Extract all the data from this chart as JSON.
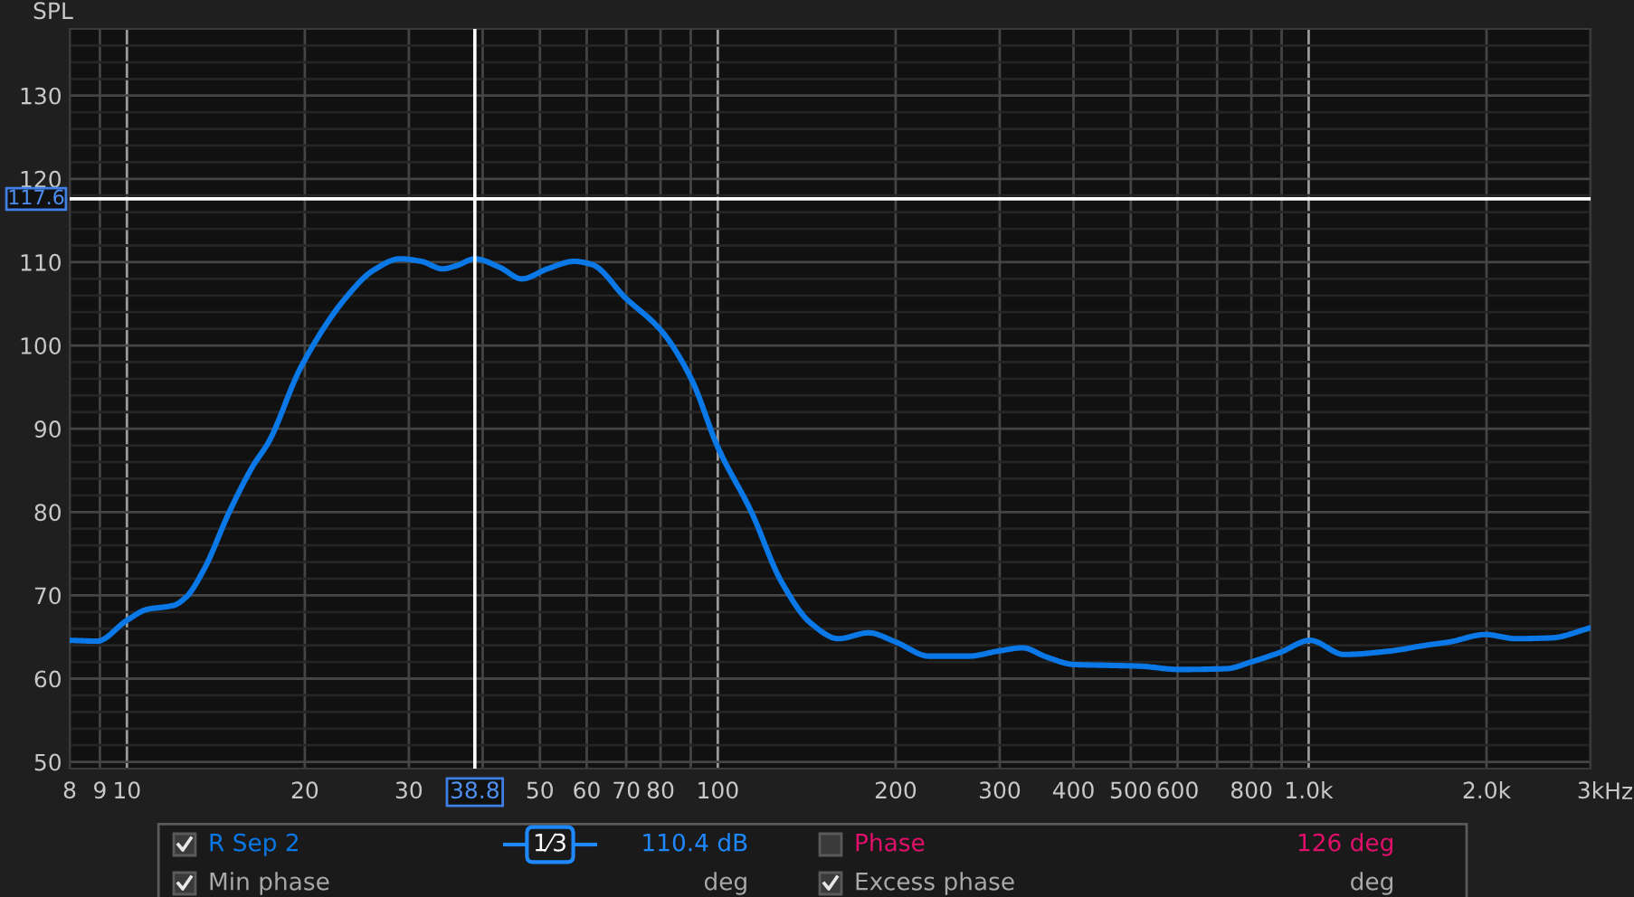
{
  "chart_data": {
    "type": "line",
    "ylabel": "SPL",
    "xlabel": "Hz",
    "log": "x",
    "xlim": [
      8,
      3000
    ],
    "ylim": [
      49.2,
      138
    ],
    "xticks": [
      8,
      9,
      10,
      20,
      30,
      {
        "value": 40,
        "label": null
      },
      50,
      60,
      70,
      80,
      {
        "value": 90,
        "label": null
      },
      100,
      200,
      300,
      400,
      500,
      600,
      {
        "value": 700,
        "label": null
      },
      800,
      {
        "value": 900,
        "label": null
      },
      {
        "value": 1000,
        "label": "1.0k"
      },
      {
        "value": 2000,
        "label": "2.0k"
      },
      {
        "value": 3000,
        "label": "3k"
      }
    ],
    "yticks": [
      50,
      {
        "value": 52,
        "label": null
      },
      {
        "value": 54,
        "label": null
      },
      {
        "value": 56,
        "label": null
      },
      {
        "value": 58,
        "label": null
      },
      60,
      {
        "value": 62,
        "label": null
      },
      {
        "value": 64,
        "label": null
      },
      {
        "value": 66,
        "label": null
      },
      {
        "value": 68,
        "label": null
      },
      70,
      {
        "value": 72,
        "label": null
      },
      {
        "value": 74,
        "label": null
      },
      {
        "value": 76,
        "label": null
      },
      {
        "value": 78,
        "label": null
      },
      80,
      {
        "value": 82,
        "label": null
      },
      {
        "value": 84,
        "label": null
      },
      {
        "value": 86,
        "label": null
      },
      {
        "value": 88,
        "label": null
      },
      90,
      {
        "value": 92,
        "label": null
      },
      {
        "value": 94,
        "label": null
      },
      {
        "value": 96,
        "label": null
      },
      {
        "value": 98,
        "label": null
      },
      100,
      {
        "value": 102,
        "label": null
      },
      {
        "value": 104,
        "label": null
      },
      {
        "value": 106,
        "label": null
      },
      {
        "value": 108,
        "label": null
      },
      110,
      {
        "value": 112,
        "label": null
      },
      {
        "value": 114,
        "label": null
      },
      {
        "value": 116,
        "label": null
      },
      {
        "value": 118,
        "label": null
      },
      120,
      {
        "value": 122,
        "label": null
      },
      {
        "value": 124,
        "label": null
      },
      {
        "value": 126,
        "label": null
      },
      {
        "value": 128,
        "label": null
      },
      130,
      {
        "value": 132,
        "label": null
      },
      {
        "value": 134,
        "label": null
      },
      {
        "value": 136,
        "label": null
      }
    ],
    "grid": true,
    "legend": "bottom",
    "x": [
      8,
      8.9,
      10,
      10.8,
      12.0,
      12.6,
      13.5,
      14.9,
      16.3,
      17.4,
      19.7,
      23.7,
      26.1,
      29.0,
      31.5,
      34.2,
      36.2,
      38.8,
      42.7,
      46.6,
      51.5,
      57.2,
      61.3,
      69.8,
      80.4,
      90.3,
      100,
      114,
      128,
      144,
      160,
      180,
      200,
      228,
      266,
      298,
      328,
      360,
      400,
      455,
      518,
      603,
      727,
      799,
      898,
      1005,
      1148,
      1369,
      1576,
      1731,
      1992,
      2239,
      2578,
      3000
    ],
    "series": [
      {
        "name": "R Sep 2",
        "color": "#0a78e6",
        "values": [
          64.6,
          64.5,
          67.0,
          68.3,
          68.8,
          69.8,
          73.1,
          80.0,
          85.4,
          88.5,
          97.4,
          106.1,
          109.0,
          110.4,
          110.1,
          109.2,
          109.6,
          110.4,
          109.4,
          108.0,
          109.2,
          110.1,
          109.7,
          105.7,
          101.7,
          95.9,
          87.8,
          80.0,
          71.7,
          66.6,
          64.8,
          65.5,
          64.4,
          62.7,
          62.7,
          63.3,
          63.7,
          62.6,
          61.7,
          61.6,
          61.5,
          61.1,
          61.2,
          62.0,
          63.2,
          64.6,
          62.9,
          63.3,
          64.0,
          64.4,
          65.3,
          64.8,
          64.9,
          66.1
        ]
      }
    ],
    "ref_lines": [
      {
        "axis": "x",
        "value": 38.8,
        "label": "38.8",
        "color": "#ffffff"
      },
      {
        "axis": "y",
        "value": 117.6,
        "label": "117.6",
        "color": "#ffffff"
      }
    ],
    "annotations": [
      "1⁄3",
      "110.4 dB",
      "Phase",
      "126 deg",
      "Min phase",
      "deg",
      "Excess phase",
      "deg"
    ]
  }
}
